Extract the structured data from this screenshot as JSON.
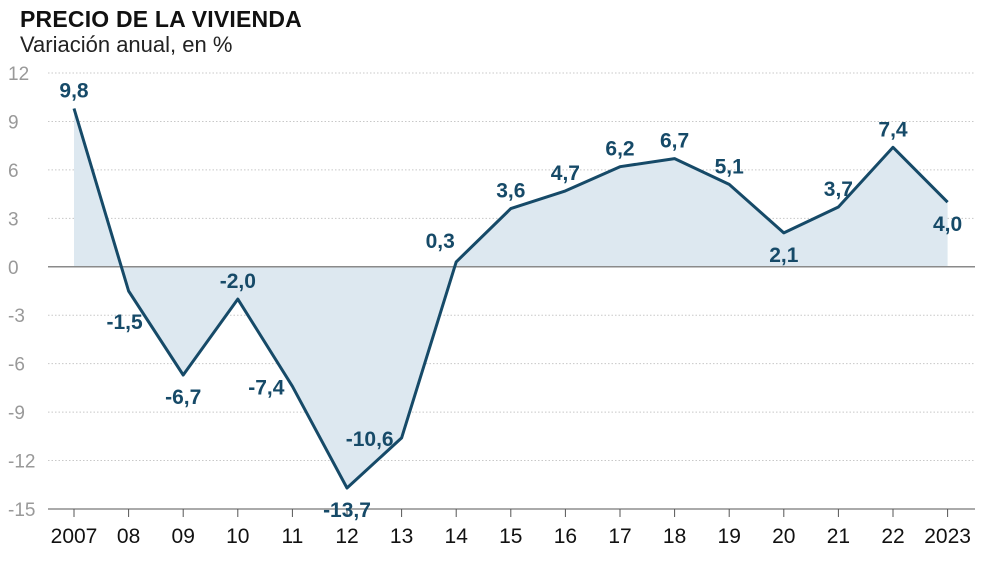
{
  "chart_data": {
    "type": "area",
    "title": "PRECIO DE LA VIVIENDA",
    "subtitle": "Variación anual, en %",
    "categories": [
      "2007",
      "08",
      "09",
      "10",
      "11",
      "12",
      "13",
      "14",
      "15",
      "16",
      "17",
      "18",
      "19",
      "20",
      "21",
      "22",
      "2023"
    ],
    "values": [
      9.8,
      -1.5,
      -6.7,
      -2.0,
      -7.4,
      -13.7,
      -10.6,
      0.3,
      3.6,
      4.7,
      6.2,
      6.7,
      5.1,
      2.1,
      3.7,
      7.4,
      4.0
    ],
    "data_labels": [
      "9,8",
      "-1,5",
      "-6,7",
      "-2,0",
      "-7,4",
      "-13,7",
      "-10,6",
      "0,3",
      "3,6",
      "4,7",
      "6,2",
      "6,7",
      "5,1",
      "2,1",
      "3,7",
      "7,4",
      "4,0"
    ],
    "yticks": [
      "12",
      "9",
      "6",
      "3",
      "0",
      "-3",
      "-6",
      "-9",
      "-12",
      "-15"
    ],
    "ytick_values": [
      12,
      9,
      6,
      3,
      0,
      -3,
      -6,
      -9,
      -12,
      -15
    ],
    "ylim": [
      -15,
      12
    ],
    "grid": true,
    "xlabel": "",
    "ylabel": "",
    "colors": {
      "line": "#164a68",
      "fill": "#dde8f0",
      "grid": "#c8c8c8",
      "zero": "#8a8a8a",
      "label": "#164a68"
    }
  }
}
